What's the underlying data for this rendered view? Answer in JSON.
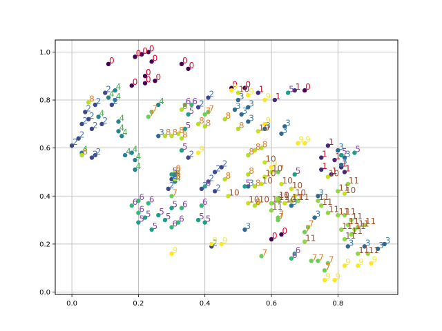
{
  "chart_data": {
    "type": "scatter",
    "title": "",
    "xlabel": "",
    "ylabel": "",
    "xlim": [
      -0.05,
      0.98
    ],
    "ylim": [
      -0.01,
      1.05
    ],
    "grid": true,
    "x_ticks": [
      {
        "value": 0.0,
        "label": "0.0"
      },
      {
        "value": 0.2,
        "label": "0.2"
      },
      {
        "value": 0.4,
        "label": "0.4"
      },
      {
        "value": 0.6,
        "label": "0.6"
      },
      {
        "value": 0.8,
        "label": "0.8"
      }
    ],
    "y_ticks": [
      {
        "value": 0.0,
        "label": "0.0"
      },
      {
        "value": 0.2,
        "label": "0.2"
      },
      {
        "value": 0.4,
        "label": "0.4"
      },
      {
        "value": 0.6,
        "label": "0.6"
      },
      {
        "value": 0.8,
        "label": "0.8"
      },
      {
        "value": 1.0,
        "label": "1.0"
      }
    ],
    "class_colors": {
      "0": "#440154",
      "1": "#482878",
      "2": "#3e4989",
      "3": "#31688e",
      "4": "#26828e",
      "5": "#1f9e89",
      "6": "#35b779",
      "7": "#6ece58",
      "8": "#b5de2b",
      "9": "#fde725",
      "10": "#c8e020",
      "11": "#90d743"
    },
    "label_colors": {
      "0": "#e8002e",
      "1": "#c0102a",
      "2": "#4472c4",
      "3": "#3a7fb0",
      "4": "#4caf50",
      "5": "#8e44ad",
      "6": "#8e44ad",
      "7": "#e67e22",
      "8": "#e67e22",
      "9": "#f1e84a",
      "10": "#a0522d",
      "11": "#a0522d"
    },
    "series": [
      {
        "label": "0",
        "points": [
          [
            0.11,
            0.95
          ],
          [
            0.19,
            0.98
          ],
          [
            0.21,
            0.99
          ],
          [
            0.23,
            1.0
          ],
          [
            0.24,
            0.96
          ],
          [
            0.18,
            0.86
          ],
          [
            0.22,
            0.87
          ],
          [
            0.22,
            0.9
          ],
          [
            0.25,
            0.88
          ],
          [
            0.33,
            0.95
          ],
          [
            0.35,
            0.93
          ],
          [
            0.48,
            0.85
          ],
          [
            0.52,
            0.85
          ],
          [
            0.6,
            0.22
          ],
          [
            0.63,
            0.24
          ],
          [
            0.7,
            0.84
          ]
        ]
      },
      {
        "label": "1",
        "points": [
          [
            0.56,
            0.83
          ],
          [
            0.61,
            0.8
          ],
          [
            0.67,
            0.84
          ],
          [
            0.77,
            0.61
          ],
          [
            0.75,
            0.56
          ],
          [
            0.79,
            0.55
          ],
          [
            0.81,
            0.52
          ],
          [
            0.75,
            0.51
          ],
          [
            0.78,
            0.49
          ],
          [
            0.82,
            0.5
          ]
        ]
      },
      {
        "label": "2",
        "points": [
          [
            0.0,
            0.61
          ],
          [
            0.02,
            0.64
          ],
          [
            0.03,
            0.7
          ],
          [
            0.05,
            0.72
          ],
          [
            0.06,
            0.56
          ],
          [
            0.07,
            0.57
          ],
          [
            0.04,
            0.75
          ],
          [
            0.07,
            0.78
          ],
          [
            0.1,
            0.83
          ],
          [
            0.12,
            0.78
          ],
          [
            0.06,
            0.68
          ],
          [
            0.09,
            0.7
          ],
          [
            0.43,
            0.5
          ],
          [
            0.45,
            0.52
          ],
          [
            0.41,
            0.46
          ],
          [
            0.43,
            0.42
          ],
          [
            0.39,
            0.43
          ],
          [
            0.41,
            0.81
          ],
          [
            0.38,
            0.77
          ],
          [
            0.3,
            0.47
          ],
          [
            0.31,
            0.49
          ],
          [
            0.35,
            0.56
          ],
          [
            0.29,
            0.43
          ],
          [
            0.42,
            0.19
          ]
        ]
      },
      {
        "label": "3",
        "points": [
          [
            0.5,
            0.8
          ],
          [
            0.51,
            0.74
          ],
          [
            0.53,
            0.77
          ],
          [
            0.49,
            0.76
          ],
          [
            0.53,
            0.71
          ],
          [
            0.52,
            0.26
          ],
          [
            0.53,
            0.44
          ],
          [
            0.58,
            0.68
          ],
          [
            0.63,
            0.66
          ],
          [
            0.64,
            0.69
          ],
          [
            0.66,
            0.36
          ],
          [
            0.73,
            0.31
          ],
          [
            0.74,
            0.4
          ],
          [
            0.83,
            0.19
          ],
          [
            0.88,
            0.19
          ],
          [
            0.92,
            0.18
          ],
          [
            0.94,
            0.2
          ],
          [
            0.8,
            0.59
          ],
          [
            0.82,
            0.56
          ],
          [
            0.81,
            0.53
          ],
          [
            0.26,
            0.65
          ]
        ]
      },
      {
        "label": "4",
        "points": [
          [
            0.11,
            0.81
          ],
          [
            0.13,
            0.8
          ],
          [
            0.13,
            0.84
          ],
          [
            0.14,
            0.71
          ],
          [
            0.14,
            0.67
          ],
          [
            0.15,
            0.65
          ],
          [
            0.08,
            0.73
          ],
          [
            0.03,
            0.58
          ],
          [
            0.16,
            0.57
          ],
          [
            0.18,
            0.58
          ],
          [
            0.19,
            0.55
          ],
          [
            0.19,
            0.51
          ],
          [
            0.26,
            0.78
          ],
          [
            0.31,
            0.46
          ],
          [
            0.31,
            0.48
          ]
        ]
      },
      {
        "label": "5",
        "points": [
          [
            0.2,
            0.29
          ],
          [
            0.22,
            0.31
          ],
          [
            0.24,
            0.26
          ],
          [
            0.26,
            0.32
          ],
          [
            0.28,
            0.3
          ],
          [
            0.3,
            0.35
          ],
          [
            0.3,
            0.49
          ],
          [
            0.34,
            0.68
          ],
          [
            0.33,
            0.59
          ],
          [
            0.35,
            0.74
          ],
          [
            0.38,
            0.3
          ],
          [
            0.4,
            0.29
          ],
          [
            0.52,
            0.44
          ],
          [
            0.65,
            0.83
          ],
          [
            0.81,
            0.57
          ],
          [
            0.85,
            0.58
          ],
          [
            0.67,
            0.49
          ]
        ]
      },
      {
        "label": "6",
        "points": [
          [
            0.18,
            0.36
          ],
          [
            0.2,
            0.38
          ],
          [
            0.2,
            0.33
          ],
          [
            0.23,
            0.37
          ],
          [
            0.3,
            0.27
          ],
          [
            0.32,
            0.29
          ],
          [
            0.33,
            0.35
          ],
          [
            0.34,
            0.78
          ],
          [
            0.36,
            0.78
          ],
          [
            0.39,
            0.36
          ],
          [
            0.4,
            0.44
          ],
          [
            0.66,
            0.14
          ],
          [
            0.67,
            0.16
          ]
        ]
      },
      {
        "label": "7",
        "points": [
          [
            0.23,
            0.73
          ],
          [
            0.24,
            0.75
          ],
          [
            0.3,
            0.4
          ],
          [
            0.4,
            0.74
          ],
          [
            0.41,
            0.75
          ],
          [
            0.62,
            0.31
          ],
          [
            0.62,
            0.3
          ],
          [
            0.7,
            0.25
          ],
          [
            0.71,
            0.27
          ],
          [
            0.72,
            0.13
          ],
          [
            0.74,
            0.13
          ],
          [
            0.76,
            0.09
          ],
          [
            0.77,
            0.12
          ],
          [
            0.57,
            0.15
          ],
          [
            0.62,
            0.5
          ]
        ]
      },
      {
        "label": "8",
        "points": [
          [
            0.05,
            0.79
          ],
          [
            0.28,
            0.65
          ],
          [
            0.3,
            0.65
          ],
          [
            0.32,
            0.66
          ],
          [
            0.33,
            0.64
          ],
          [
            0.31,
            0.5
          ],
          [
            0.31,
            0.47
          ],
          [
            0.33,
            0.76
          ],
          [
            0.38,
            0.7
          ],
          [
            0.4,
            0.69
          ],
          [
            0.46,
            0.72
          ],
          [
            0.5,
            0.68
          ],
          [
            0.53,
            0.57
          ],
          [
            0.55,
            0.59
          ],
          [
            0.57,
            0.6
          ],
          [
            0.53,
            0.49
          ],
          [
            0.55,
            0.44
          ],
          [
            0.55,
            0.36
          ],
          [
            0.46,
            0.47
          ],
          [
            0.03,
            0.57
          ]
        ]
      },
      {
        "label": "9",
        "points": [
          [
            0.48,
            0.84
          ],
          [
            0.53,
            0.82
          ],
          [
            0.58,
            0.8
          ],
          [
            0.38,
            0.58
          ],
          [
            0.42,
            0.2
          ],
          [
            0.45,
            0.2
          ],
          [
            0.3,
            0.16
          ],
          [
            0.68,
            0.62
          ],
          [
            0.7,
            0.62
          ],
          [
            0.76,
            0.05
          ],
          [
            0.79,
            0.05
          ],
          [
            0.82,
            0.11
          ],
          [
            0.86,
            0.11
          ],
          [
            0.9,
            0.12
          ],
          [
            0.58,
            0.7
          ],
          [
            0.6,
            0.52
          ]
        ]
      },
      {
        "label": "10",
        "points": [
          [
            0.5,
            0.83
          ],
          [
            0.56,
            0.67
          ],
          [
            0.58,
            0.54
          ],
          [
            0.58,
            0.48
          ],
          [
            0.57,
            0.45
          ],
          [
            0.6,
            0.5
          ],
          [
            0.63,
            0.45
          ],
          [
            0.66,
            0.43
          ],
          [
            0.67,
            0.4
          ],
          [
            0.62,
            0.39
          ],
          [
            0.64,
            0.37
          ],
          [
            0.77,
            0.48
          ],
          [
            0.82,
            0.41
          ],
          [
            0.47,
            0.4
          ],
          [
            0.53,
            0.37
          ],
          [
            0.56,
            0.37
          ]
        ]
      },
      {
        "label": "11",
        "points": [
          [
            0.6,
            0.37
          ],
          [
            0.62,
            0.38
          ],
          [
            0.62,
            0.39
          ],
          [
            0.66,
            0.38
          ],
          [
            0.68,
            0.38
          ],
          [
            0.7,
            0.21
          ],
          [
            0.74,
            0.38
          ],
          [
            0.75,
            0.36
          ],
          [
            0.77,
            0.33
          ],
          [
            0.8,
            0.32
          ],
          [
            0.82,
            0.32
          ],
          [
            0.84,
            0.3
          ],
          [
            0.83,
            0.28
          ],
          [
            0.86,
            0.27
          ],
          [
            0.88,
            0.28
          ],
          [
            0.85,
            0.26
          ],
          [
            0.84,
            0.24
          ],
          [
            0.81,
            0.26
          ],
          [
            0.82,
            0.22
          ],
          [
            0.86,
            0.16
          ],
          [
            0.89,
            0.16
          ],
          [
            0.8,
            0.42
          ],
          [
            0.83,
            0.45
          ],
          [
            0.6,
            0.34
          ]
        ]
      }
    ]
  }
}
